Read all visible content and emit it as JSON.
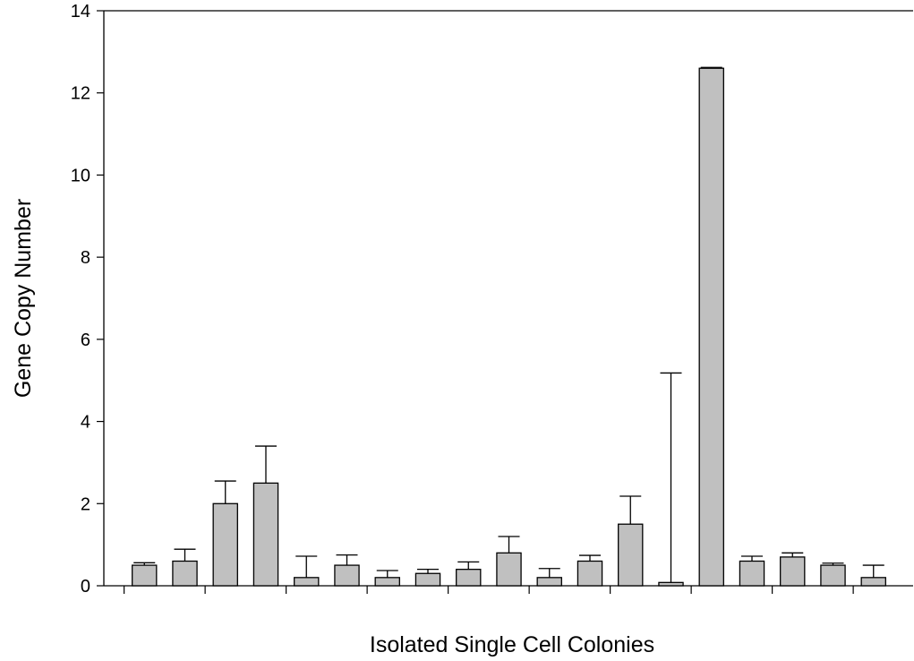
{
  "chart_data": {
    "type": "bar",
    "title": "",
    "xlabel": "Isolated Single Cell Colonies",
    "ylabel": "Gene Copy Number",
    "ylim": [
      0,
      14
    ],
    "yticks": [
      0,
      2,
      4,
      6,
      8,
      10,
      12,
      14
    ],
    "grid": false,
    "legend": "none",
    "bar_color": "#c0c0c0",
    "series": [
      {
        "values": [
          0.5,
          0.6,
          2.0,
          2.5,
          0.2,
          0.5,
          0.2,
          0.3,
          0.4,
          0.8,
          0.2,
          0.6,
          1.5,
          0.08,
          12.6,
          0.6,
          0.7,
          0.5,
          0.2
        ],
        "error_upper": [
          0.56,
          0.89,
          2.55,
          3.4,
          0.72,
          0.75,
          0.37,
          0.4,
          0.58,
          1.2,
          0.42,
          0.74,
          2.18,
          5.18,
          12.62,
          0.72,
          0.8,
          0.55,
          0.5
        ]
      }
    ]
  }
}
